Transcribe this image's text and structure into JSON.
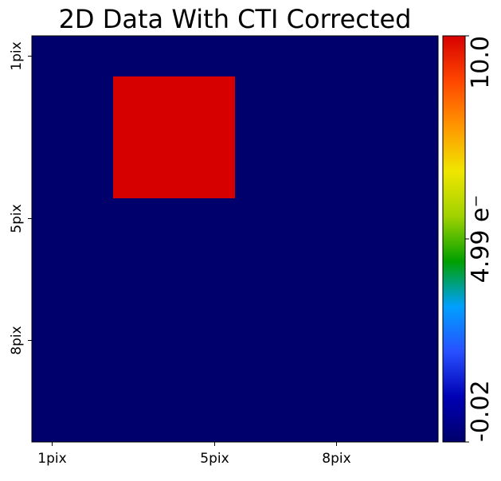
{
  "chart_data": {
    "type": "heatmap",
    "title": "2D Data With CTI Corrected",
    "xlabel": "",
    "ylabel": "",
    "rows": 10,
    "cols": 10,
    "values": [
      [
        0,
        0,
        0,
        0,
        0,
        0,
        0,
        0,
        0,
        0
      ],
      [
        0,
        0,
        10,
        10,
        10,
        0,
        0,
        0,
        0,
        0
      ],
      [
        0,
        0,
        10,
        10,
        10,
        0,
        0,
        0,
        0,
        0
      ],
      [
        0,
        0,
        10,
        10,
        10,
        0,
        0,
        0,
        0,
        0
      ],
      [
        0,
        0,
        0,
        0,
        0,
        0,
        0,
        0,
        0,
        0
      ],
      [
        0,
        0,
        0,
        0,
        0,
        0,
        0,
        0,
        0,
        0
      ],
      [
        0,
        0,
        0,
        0,
        0,
        0,
        0,
        0,
        0,
        0
      ],
      [
        0,
        0,
        0,
        0,
        0,
        0,
        0,
        0,
        0,
        0
      ],
      [
        0,
        0,
        0,
        0,
        0,
        0,
        0,
        0,
        0,
        0
      ],
      [
        0,
        0,
        0,
        0,
        0,
        0,
        0,
        0,
        0,
        0
      ]
    ],
    "x_ticks": [
      {
        "pos": 1,
        "label": "1pix"
      },
      {
        "pos": 5,
        "label": "5pix"
      },
      {
        "pos": 8,
        "label": "8pix"
      }
    ],
    "y_ticks": [
      {
        "pos": 1,
        "label": "1pix"
      },
      {
        "pos": 5,
        "label": "5pix"
      },
      {
        "pos": 8,
        "label": "8pix"
      }
    ],
    "colorbar": {
      "min": -0.02,
      "max": 10.0,
      "tick_labels": [
        "-0.02",
        "4.99 e⁻",
        "10.0"
      ],
      "colormap": [
        "#00006b",
        "#0000b4",
        "#2850ff",
        "#00a0ff",
        "#00a000",
        "#a0d200",
        "#f0e600",
        "#ff9600",
        "#ff4600",
        "#d70000"
      ]
    }
  }
}
